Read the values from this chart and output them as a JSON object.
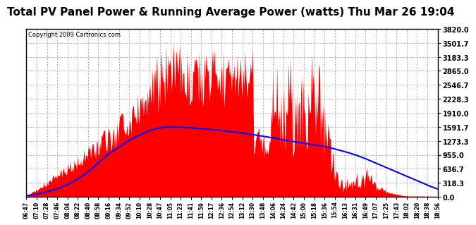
{
  "title": "Total PV Panel Power & Running Average Power (watts) Thu Mar 26 19:04",
  "copyright": "Copyright 2009 Cartronics.com",
  "y_max": 3820.0,
  "y_min": 0.0,
  "y_ticks": [
    0.0,
    318.3,
    636.7,
    955.0,
    1273.3,
    1591.7,
    1910.0,
    2228.3,
    2546.7,
    2865.0,
    3183.3,
    3501.7,
    3820.0
  ],
  "x_labels": [
    "06:47",
    "07:10",
    "07:28",
    "07:46",
    "08:04",
    "08:22",
    "08:40",
    "08:58",
    "09:16",
    "09:34",
    "09:52",
    "10:10",
    "10:28",
    "10:47",
    "11:05",
    "11:23",
    "11:41",
    "11:59",
    "12:17",
    "12:36",
    "12:54",
    "13:12",
    "13:30",
    "13:48",
    "14:06",
    "14:24",
    "14:42",
    "15:00",
    "15:18",
    "15:36",
    "15:54",
    "16:13",
    "16:31",
    "16:49",
    "17:07",
    "17:25",
    "17:43",
    "18:02",
    "18:20",
    "18:38",
    "18:56"
  ],
  "background_color": "#ffffff",
  "plot_bg_color": "#ffffff",
  "grid_color": "#bbbbbb",
  "bar_color": "#ff0000",
  "line_color": "#0000ff",
  "title_fontsize": 11,
  "copyright_fontsize": 6,
  "avg_line_points": [
    [
      0,
      30
    ],
    [
      10,
      50
    ],
    [
      20,
      90
    ],
    [
      30,
      140
    ],
    [
      40,
      200
    ],
    [
      50,
      280
    ],
    [
      60,
      380
    ],
    [
      70,
      500
    ],
    [
      80,
      650
    ],
    [
      90,
      820
    ],
    [
      100,
      980
    ],
    [
      110,
      1100
    ],
    [
      120,
      1230
    ],
    [
      130,
      1340
    ],
    [
      140,
      1430
    ],
    [
      150,
      1510
    ],
    [
      160,
      1560
    ],
    [
      170,
      1591
    ],
    [
      180,
      1591
    ],
    [
      190,
      1580
    ],
    [
      200,
      1570
    ],
    [
      210,
      1555
    ],
    [
      220,
      1540
    ],
    [
      230,
      1520
    ],
    [
      240,
      1500
    ],
    [
      250,
      1480
    ],
    [
      260,
      1455
    ],
    [
      270,
      1430
    ],
    [
      280,
      1400
    ],
    [
      290,
      1370
    ],
    [
      300,
      1340
    ],
    [
      310,
      1300
    ],
    [
      320,
      1270
    ],
    [
      330,
      1240
    ],
    [
      340,
      1210
    ],
    [
      350,
      1180
    ],
    [
      360,
      1150
    ],
    [
      370,
      1110
    ],
    [
      380,
      1060
    ],
    [
      390,
      1010
    ],
    [
      400,
      950
    ],
    [
      410,
      880
    ],
    [
      420,
      800
    ],
    [
      430,
      720
    ],
    [
      440,
      640
    ],
    [
      450,
      560
    ],
    [
      460,
      480
    ],
    [
      470,
      400
    ],
    [
      480,
      320
    ],
    [
      490,
      240
    ],
    [
      499,
      180
    ]
  ]
}
